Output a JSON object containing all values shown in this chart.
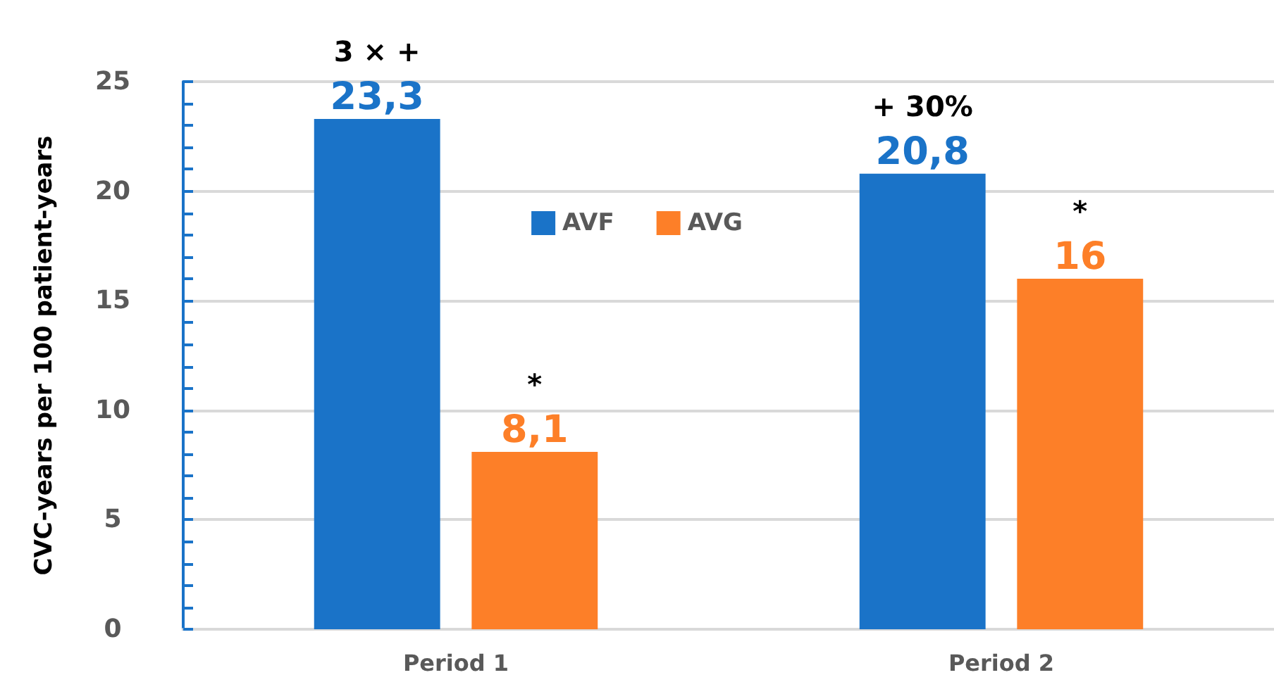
{
  "chart_data": {
    "type": "bar",
    "ylabel": "CVC-years per 100 patient-years",
    "categories": [
      "Period 1",
      "Period 2"
    ],
    "series": [
      {
        "name": "AVF",
        "color": "#1a73c8",
        "values": [
          23.3,
          20.8
        ],
        "value_labels": [
          "23,3",
          "20,8"
        ]
      },
      {
        "name": "AVG",
        "color": "#fd7f28",
        "values": [
          8.1,
          16
        ],
        "value_labels": [
          "8,1",
          "16"
        ]
      }
    ],
    "ylim": [
      0,
      25
    ],
    "yticks": [
      0,
      5,
      10,
      15,
      20,
      25
    ],
    "grid": "y",
    "legend": "top",
    "annotations": [
      "3 × +",
      "*",
      "+ 30%",
      "*"
    ]
  }
}
